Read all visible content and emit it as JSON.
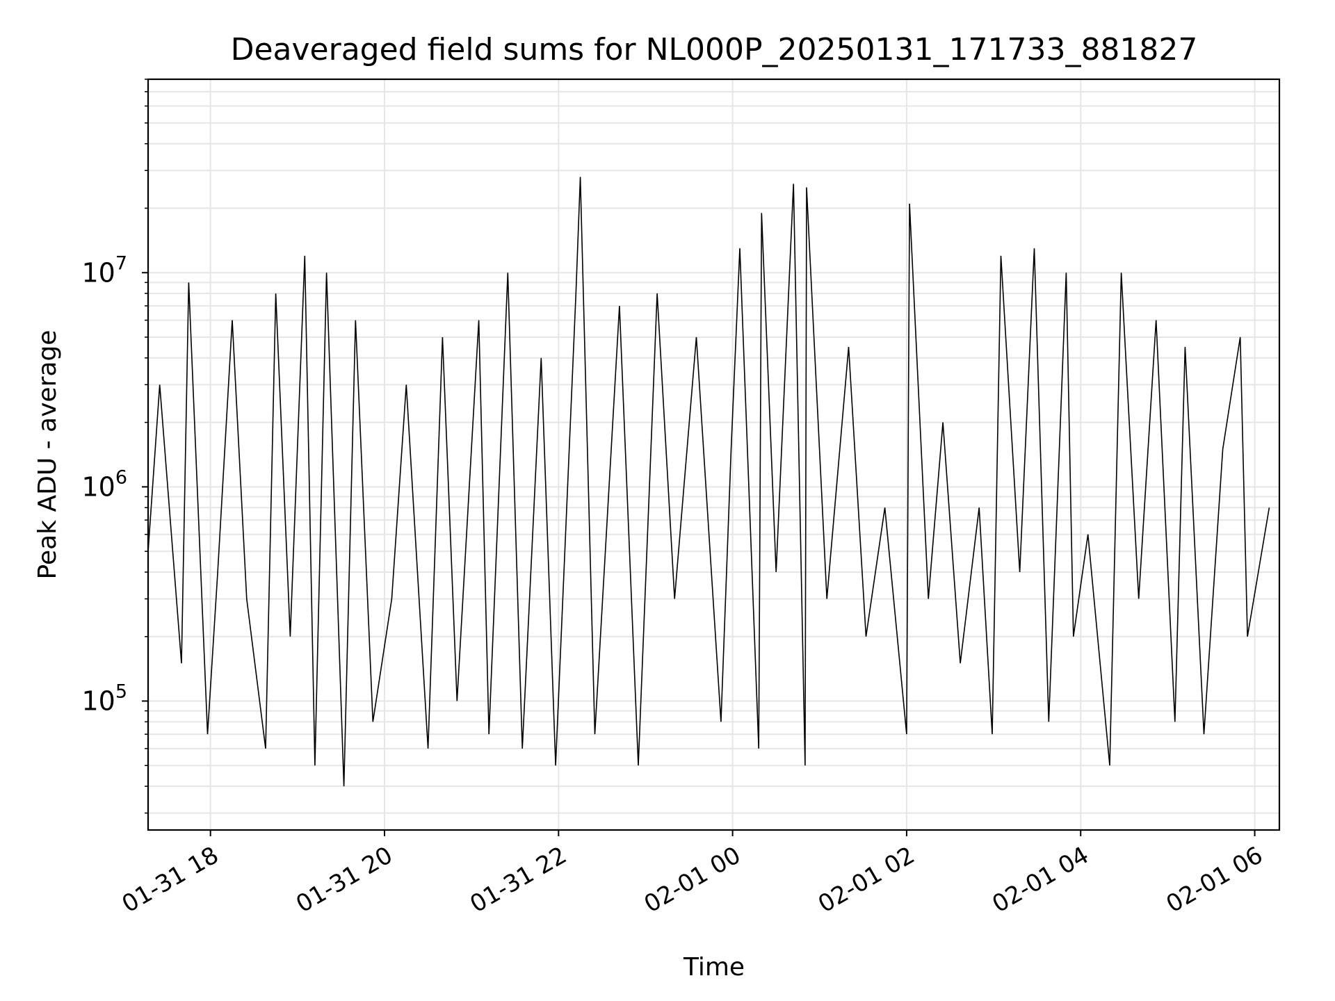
{
  "chart_data": {
    "type": "line",
    "title": "Deaveraged field sums for NL000P_20250131_171733_881827",
    "xlabel": "Time",
    "ylabel": "Peak ADU - average",
    "y_scale": "log",
    "ylim": [
      25000,
      80000000
    ],
    "xlim": [
      "2025-01-31 17:17",
      "2025-02-01 06:17"
    ],
    "grid": true,
    "line_color": "#000000",
    "x_ticks": [
      {
        "t": "2025-01-31 18:00",
        "label": "01-31 18"
      },
      {
        "t": "2025-01-31 20:00",
        "label": "01-31 20"
      },
      {
        "t": "2025-01-31 22:00",
        "label": "01-31 22"
      },
      {
        "t": "2025-02-01 00:00",
        "label": "02-01 00"
      },
      {
        "t": "2025-02-01 02:00",
        "label": "02-01 02"
      },
      {
        "t": "2025-02-01 04:00",
        "label": "02-01 04"
      },
      {
        "t": "2025-02-01 06:00",
        "label": "02-01 06"
      }
    ],
    "y_ticks": [
      {
        "value": 100000,
        "base": "10",
        "exp": "5"
      },
      {
        "value": 1000000,
        "base": "10",
        "exp": "6"
      },
      {
        "value": 10000000,
        "base": "10",
        "exp": "7"
      }
    ],
    "series": [
      {
        "x": [
          "2025-01-31 17:17",
          "2025-01-31 17:25",
          "2025-01-31 17:40",
          "2025-01-31 17:45",
          "2025-01-31 17:58",
          "2025-01-31 18:05",
          "2025-01-31 18:15",
          "2025-01-31 18:25",
          "2025-01-31 18:38",
          "2025-01-31 18:45",
          "2025-01-31 18:55",
          "2025-01-31 19:05",
          "2025-01-31 19:12",
          "2025-01-31 19:20",
          "2025-01-31 19:32",
          "2025-01-31 19:40",
          "2025-01-31 19:52",
          "2025-01-31 20:05",
          "2025-01-31 20:15",
          "2025-01-31 20:30",
          "2025-01-31 20:40",
          "2025-01-31 20:50",
          "2025-01-31 21:05",
          "2025-01-31 21:12",
          "2025-01-31 21:25",
          "2025-01-31 21:35",
          "2025-01-31 21:48",
          "2025-01-31 21:58",
          "2025-01-31 22:12",
          "2025-01-31 22:15",
          "2025-01-31 22:25",
          "2025-01-31 22:42",
          "2025-01-31 22:55",
          "2025-01-31 23:08",
          "2025-01-31 23:20",
          "2025-01-31 23:35",
          "2025-01-31 23:52",
          "2025-01-31 23:59",
          "2025-02-01 00:05",
          "2025-02-01 00:18",
          "2025-02-01 00:20",
          "2025-02-01 00:30",
          "2025-02-01 00:42",
          "2025-02-01 00:50",
          "2025-02-01 00:51",
          "2025-02-01 01:05",
          "2025-02-01 01:20",
          "2025-02-01 01:32",
          "2025-02-01 01:45",
          "2025-02-01 02:00",
          "2025-02-01 02:02",
          "2025-02-01 02:15",
          "2025-02-01 02:25",
          "2025-02-01 02:37",
          "2025-02-01 02:50",
          "2025-02-01 02:59",
          "2025-02-01 03:05",
          "2025-02-01 03:18",
          "2025-02-01 03:28",
          "2025-02-01 03:38",
          "2025-02-01 03:50",
          "2025-02-01 03:55",
          "2025-02-01 04:05",
          "2025-02-01 04:20",
          "2025-02-01 04:28",
          "2025-02-01 04:40",
          "2025-02-01 04:52",
          "2025-02-01 05:05",
          "2025-02-01 05:12",
          "2025-02-01 05:25",
          "2025-02-01 05:38",
          "2025-02-01 05:50",
          "2025-02-01 05:55",
          "2025-02-01 06:10"
        ],
        "values": [
          500000,
          3000000,
          150000,
          9000000,
          70000,
          400000,
          6000000,
          300000,
          60000,
          8000000,
          200000,
          12000000,
          50000,
          10000000,
          40000,
          6000000,
          80000,
          300000,
          3000000,
          60000,
          5000000,
          100000,
          6000000,
          70000,
          10000000,
          60000,
          4000000,
          50000,
          8000000,
          28000000,
          70000,
          7000000,
          50000,
          8000000,
          300000,
          5000000,
          80000,
          1500000,
          13000000,
          60000,
          19000000,
          400000,
          26000000,
          50000,
          25000000,
          300000,
          4500000,
          200000,
          800000,
          70000,
          21000000,
          300000,
          2000000,
          150000,
          800000,
          70000,
          12000000,
          400000,
          13000000,
          80000,
          10000000,
          200000,
          600000,
          50000,
          10000000,
          300000,
          6000000,
          80000,
          4500000,
          70000,
          1500000,
          5000000,
          200000,
          800000
        ]
      }
    ]
  }
}
